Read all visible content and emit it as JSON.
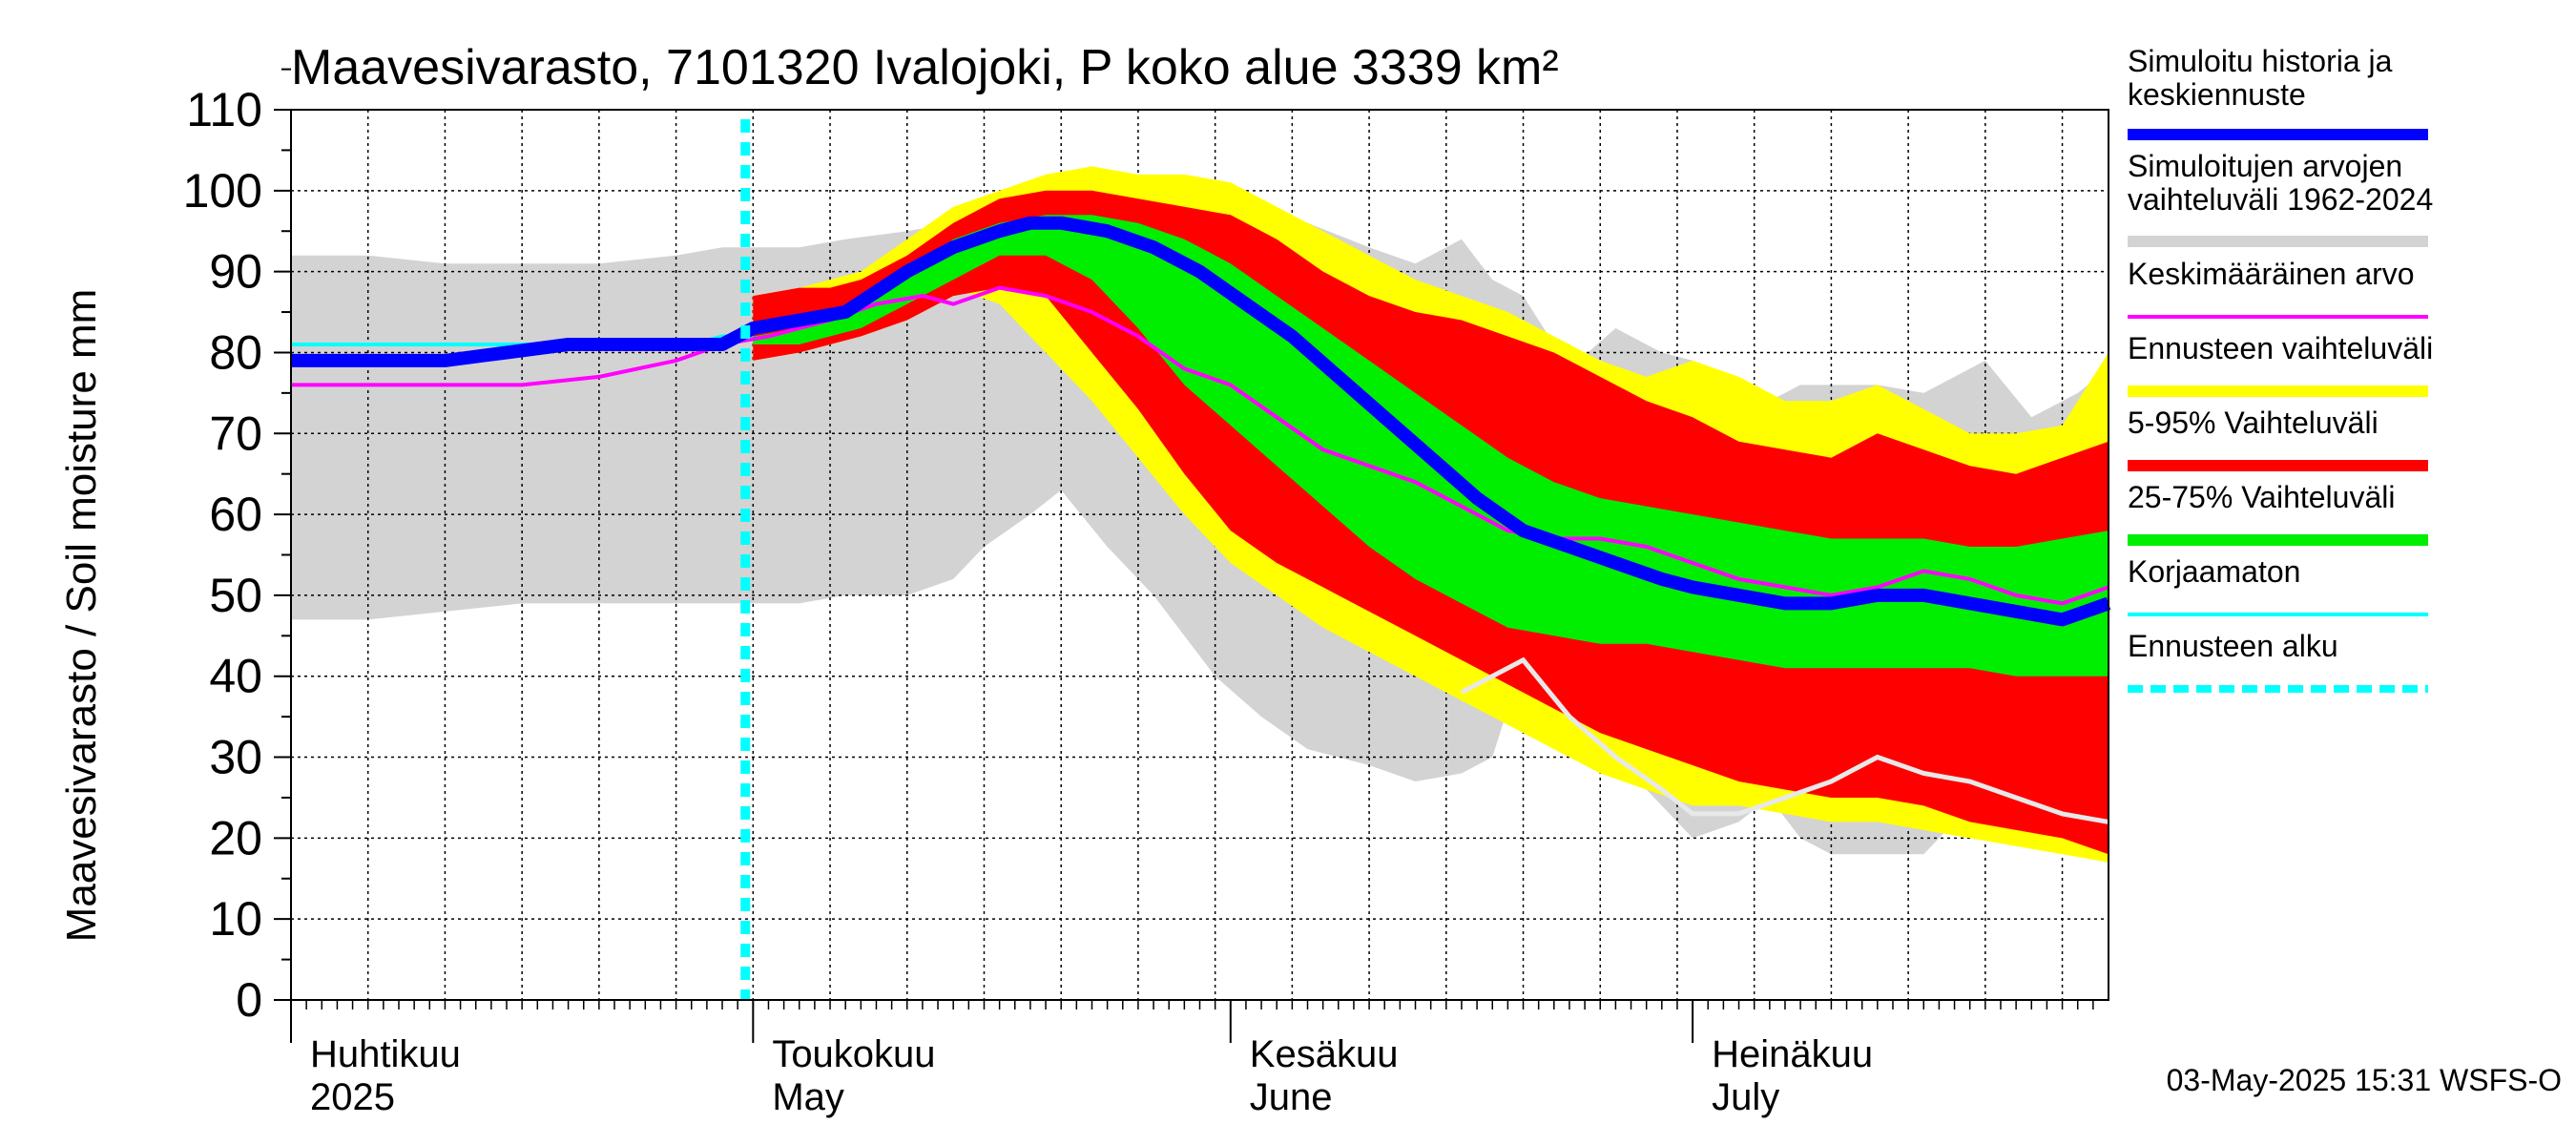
{
  "chart_data": {
    "type": "area",
    "title": "Maavesivarasto, 7101320 Ivalojoki, P koko alue 3339 km²",
    "ylabel": "Maavesivarasto / Soil moisture   mm",
    "ylim": [
      0,
      110
    ],
    "yticks": [
      0,
      10,
      20,
      30,
      40,
      50,
      60,
      70,
      80,
      90,
      100,
      110
    ],
    "xlim_day": [
      0,
      118
    ],
    "months": [
      {
        "fi": "Huhtikuu",
        "en": "2025",
        "day": 0
      },
      {
        "fi": "Toukokuu",
        "en": "May",
        "day": 30
      },
      {
        "fi": "Kesäkuu",
        "en": "June",
        "day": 61
      },
      {
        "fi": "Heinäkuu",
        "en": "July",
        "day": 91
      }
    ],
    "forecast_start_day": 29.5,
    "timestamp": "03-May-2025 15:31 WSFS-O",
    "legend": [
      {
        "label": "Simuloitu historia ja keskiennuste",
        "color": "#0000ff",
        "style": "thick"
      },
      {
        "label": "Simuloitujen arvojen vaihteluväli 1962-2024",
        "color": "#d3d3d3",
        "style": "band"
      },
      {
        "label": "Keskimääräinen arvo",
        "color": "#ff00ff",
        "style": "thin"
      },
      {
        "label": "Ennusteen vaihteluväli",
        "color": "#ffff00",
        "style": "band"
      },
      {
        "label": "5-95% Vaihteluväli",
        "color": "#ff0000",
        "style": "band"
      },
      {
        "label": "25-75% Vaihteluväli",
        "color": "#00ee00",
        "style": "band"
      },
      {
        "label": "Korjaamaton",
        "color": "#00ffff",
        "style": "thin"
      },
      {
        "label": "Ennusteen alku",
        "color": "#00ffff",
        "style": "dashed"
      }
    ],
    "series": {
      "hist_band": {
        "x": [
          0,
          5,
          10,
          15,
          20,
          25,
          28,
          30,
          33,
          36,
          40,
          43,
          45,
          48,
          50,
          53,
          56,
          60,
          63,
          66,
          70,
          73,
          76,
          78,
          80,
          83,
          86,
          89,
          91,
          94,
          96,
          98,
          100,
          103,
          106,
          110,
          113,
          116,
          118
        ],
        "upper": [
          92,
          92,
          91,
          91,
          91,
          92,
          93,
          93,
          93,
          94,
          95,
          96,
          97,
          97,
          96,
          95,
          95,
          95,
          96,
          96,
          93,
          91,
          94,
          89,
          87,
          78,
          83,
          80,
          79,
          76,
          74,
          76,
          76,
          76,
          75,
          79,
          72,
          75,
          78
        ],
        "lower": [
          47,
          47,
          48,
          49,
          49,
          49,
          49,
          49,
          49,
          50,
          50,
          52,
          56,
          60,
          63,
          56,
          50,
          40,
          35,
          31,
          29,
          27,
          28,
          30,
          42,
          34,
          30,
          24,
          20,
          22,
          25,
          20,
          18,
          18,
          18,
          26,
          25,
          24,
          22
        ]
      },
      "yellow": {
        "x": [
          30,
          33,
          35,
          37,
          40,
          43,
          46,
          49,
          52,
          55,
          58,
          61,
          64,
          67,
          70,
          73,
          76,
          79,
          82,
          85,
          88,
          91,
          94,
          97,
          100,
          103,
          106,
          109,
          112,
          115,
          118
        ],
        "upper": [
          87,
          88,
          89,
          90,
          94,
          98,
          100,
          102,
          103,
          102,
          102,
          101,
          98,
          95,
          92,
          89,
          87,
          85,
          82,
          79,
          77,
          79,
          77,
          74,
          74,
          76,
          73,
          70,
          70,
          71,
          80
        ],
        "lower": [
          79,
          80,
          81,
          82,
          84,
          88,
          86,
          80,
          74,
          67,
          60,
          54,
          50,
          46,
          43,
          40,
          37,
          34,
          31,
          28,
          26,
          24,
          24,
          23,
          22,
          22,
          21,
          20,
          19,
          18,
          17
        ]
      },
      "red": {
        "x": [
          30,
          33,
          35,
          37,
          40,
          43,
          46,
          49,
          52,
          55,
          58,
          61,
          64,
          67,
          70,
          73,
          76,
          79,
          82,
          85,
          88,
          91,
          94,
          97,
          100,
          103,
          106,
          109,
          112,
          115,
          118
        ],
        "upper": [
          87,
          88,
          88,
          89,
          92,
          96,
          99,
          100,
          100,
          99,
          98,
          97,
          94,
          90,
          87,
          85,
          84,
          82,
          80,
          77,
          74,
          72,
          69,
          68,
          67,
          70,
          68,
          66,
          65,
          67,
          69
        ],
        "lower": [
          79,
          80,
          81,
          82,
          84,
          87,
          88,
          87,
          80,
          73,
          65,
          58,
          54,
          51,
          48,
          45,
          42,
          39,
          36,
          33,
          31,
          29,
          27,
          26,
          25,
          25,
          24,
          22,
          21,
          20,
          18
        ]
      },
      "green": {
        "x": [
          30,
          33,
          35,
          37,
          40,
          43,
          46,
          49,
          52,
          55,
          58,
          61,
          64,
          67,
          70,
          73,
          76,
          79,
          82,
          85,
          88,
          91,
          94,
          97,
          100,
          103,
          106,
          109,
          112,
          115,
          118
        ],
        "upper": [
          82,
          83,
          84,
          86,
          90,
          94,
          96,
          97,
          97,
          96,
          94,
          91,
          87,
          83,
          79,
          75,
          71,
          67,
          64,
          62,
          61,
          60,
          59,
          58,
          57,
          57,
          57,
          56,
          56,
          57,
          58
        ],
        "lower": [
          81,
          81,
          82,
          83,
          86,
          89,
          92,
          92,
          89,
          83,
          76,
          71,
          66,
          61,
          56,
          52,
          49,
          46,
          45,
          44,
          44,
          43,
          42,
          41,
          41,
          41,
          41,
          41,
          40,
          40,
          40
        ]
      },
      "median": {
        "x": [
          0,
          10,
          14,
          18,
          22,
          26,
          28,
          30,
          33,
          36,
          40,
          43,
          46,
          48,
          50,
          53,
          56,
          59,
          62,
          65,
          68,
          71,
          74,
          77,
          80,
          83,
          86,
          89,
          91,
          94,
          97,
          100,
          103,
          106,
          109,
          112,
          115,
          118
        ],
        "y": [
          79,
          79,
          80,
          81,
          81,
          81,
          81,
          83,
          84,
          85,
          90,
          93,
          95,
          96,
          96,
          95,
          93,
          90,
          86,
          82,
          77,
          72,
          67,
          62,
          58,
          56,
          54,
          52,
          51,
          50,
          49,
          49,
          50,
          50,
          49,
          48,
          47,
          49
        ]
      },
      "mean": {
        "x": [
          0,
          15,
          20,
          25,
          28,
          31,
          35,
          38,
          41,
          43,
          46,
          49,
          52,
          55,
          58,
          61,
          64,
          67,
          70,
          73,
          76,
          79,
          82,
          85,
          88,
          91,
          94,
          97,
          100,
          103,
          106,
          109,
          112,
          115,
          118
        ],
        "y": [
          76,
          76,
          77,
          79,
          81,
          82,
          84,
          86,
          87,
          86,
          88,
          87,
          85,
          82,
          78,
          76,
          72,
          68,
          66,
          64,
          61,
          58,
          57,
          57,
          56,
          54,
          52,
          51,
          50,
          51,
          53,
          52,
          50,
          49,
          51
        ]
      },
      "uncorrected": {
        "x": [
          0,
          10,
          14,
          18,
          22,
          26,
          28,
          30
        ],
        "y": [
          81,
          81,
          81,
          81,
          81,
          81,
          82,
          82
        ]
      },
      "hist_min_line": {
        "x": [
          76,
          78,
          80,
          83,
          86,
          89,
          91,
          94,
          97,
          100,
          103,
          106,
          109,
          112,
          115,
          118
        ],
        "y": [
          38,
          40,
          42,
          35,
          30,
          26,
          23,
          23,
          25,
          27,
          30,
          28,
          27,
          25,
          23,
          22
        ]
      }
    }
  }
}
